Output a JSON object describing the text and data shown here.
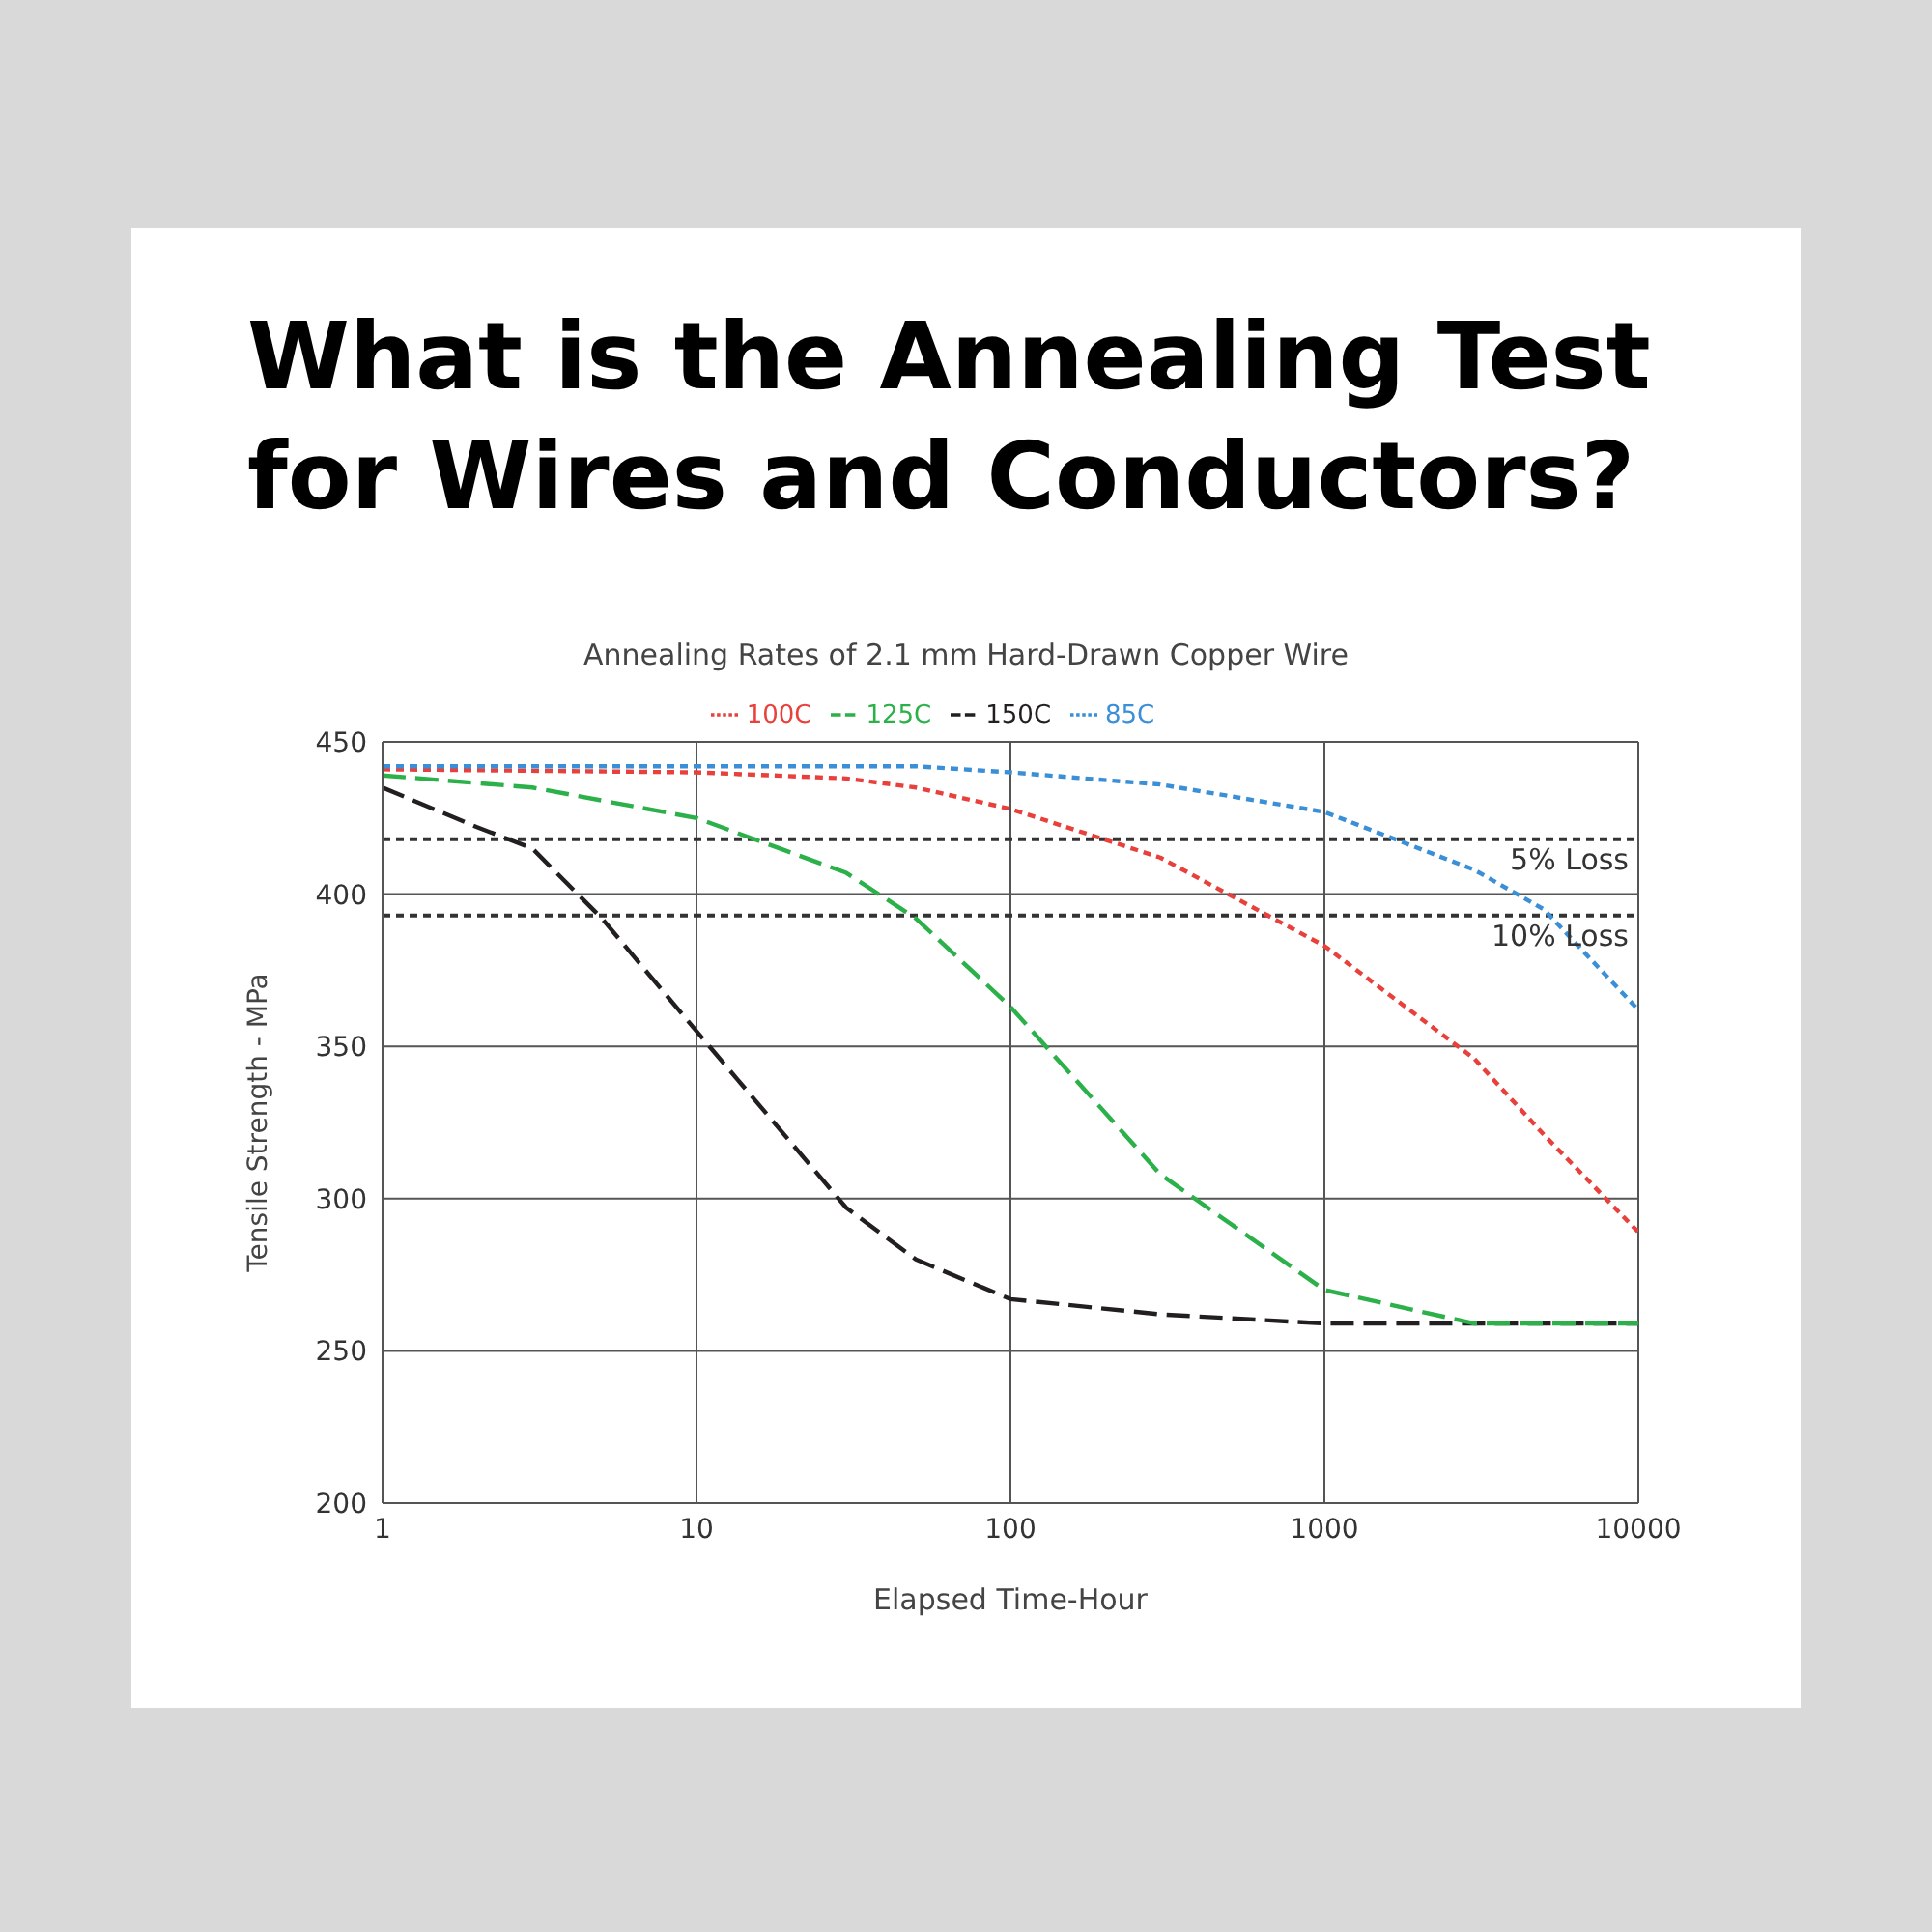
{
  "chart_data": {
    "type": "line",
    "title": "What is the Annealing Test for Wires and Conductors?",
    "subtitle": "Annealing Rates of 2.1 mm Hard-Drawn Copper Wire",
    "xlabel": "Elapsed Time-Hour",
    "ylabel": "Tensile Strength - MPa",
    "log": "x",
    "xlim": [
      1,
      10000
    ],
    "xticks": [
      1,
      10,
      100,
      1000,
      10000
    ],
    "ylim": [
      200,
      450
    ],
    "yticks": [
      200,
      250,
      300,
      350,
      400,
      450
    ],
    "grid": true,
    "legend": "top",
    "marker": "none",
    "series": [
      {
        "name": "150C",
        "color": "#231f20",
        "line_style": "dashed",
        "x": [
          1,
          2,
          3,
          5,
          10,
          30,
          50,
          100,
          300,
          1000,
          3000,
          10000
        ],
        "values": [
          435,
          422,
          415,
          392,
          355,
          297,
          280,
          267,
          262,
          259,
          259,
          259
        ]
      },
      {
        "name": "125C",
        "color": "#2bb04a",
        "line_style": "dashed",
        "x": [
          1,
          3,
          10,
          30,
          50,
          100,
          300,
          1000,
          3000,
          10000
        ],
        "values": [
          439,
          435,
          425,
          407,
          392,
          363,
          308,
          270,
          259,
          259
        ]
      },
      {
        "name": "100C",
        "color": "#e8413c",
        "line_style": "dotted",
        "x": [
          1,
          10,
          30,
          50,
          100,
          300,
          1000,
          3000,
          5000,
          10000
        ],
        "values": [
          441,
          440,
          438,
          435,
          428,
          412,
          383,
          346,
          321,
          289
        ]
      },
      {
        "name": "85C",
        "color": "#3a8fd6",
        "line_style": "dotted",
        "x": [
          1,
          10,
          50,
          100,
          300,
          1000,
          3000,
          5000,
          10000
        ],
        "values": [
          442,
          442,
          442,
          440,
          436,
          427,
          408,
          395,
          362
        ]
      }
    ],
    "ref_lines": [
      {
        "axis": "y",
        "value": 418,
        "label": "5% Loss",
        "line_style": "dotted",
        "color": "#333333"
      },
      {
        "axis": "y",
        "value": 393,
        "label": "10% Loss",
        "line_style": "dotted",
        "color": "#333333"
      }
    ]
  }
}
